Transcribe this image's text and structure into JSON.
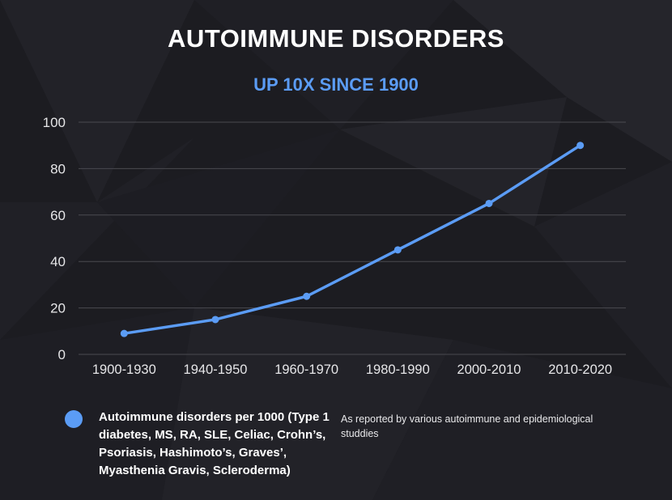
{
  "chart_data": {
    "type": "line",
    "title": "AUTOIMMUNE DISORDERS",
    "subtitle": "UP 10X SINCE 1900",
    "categories": [
      "1900-1930",
      "1940-1950",
      "1960-1970",
      "1980-1990",
      "2000-2010",
      "2010-2020"
    ],
    "series": [
      {
        "name": "Autoimmune disorders per 1000 (Type 1 diabetes, MS, RA, SLE, Celiac, Crohn’s, Psoriasis, Hashimoto’s, Graves’, Myasthenia Gravis, Scleroderma)",
        "values": [
          9,
          15,
          25,
          45,
          65,
          90
        ]
      }
    ],
    "yticks": [
      "0",
      "20",
      "40",
      "60",
      "80",
      "100"
    ],
    "ylim": [
      0,
      100
    ],
    "grid": true,
    "legend_position": "bottom-left",
    "annotation": "As reported by various autoimmune and epidemiological studdies",
    "colors": {
      "series": "#5b9cf5",
      "subtitle": "#5b9cf5",
      "grid": "#4a4a50",
      "background": "#1c1c21"
    }
  }
}
